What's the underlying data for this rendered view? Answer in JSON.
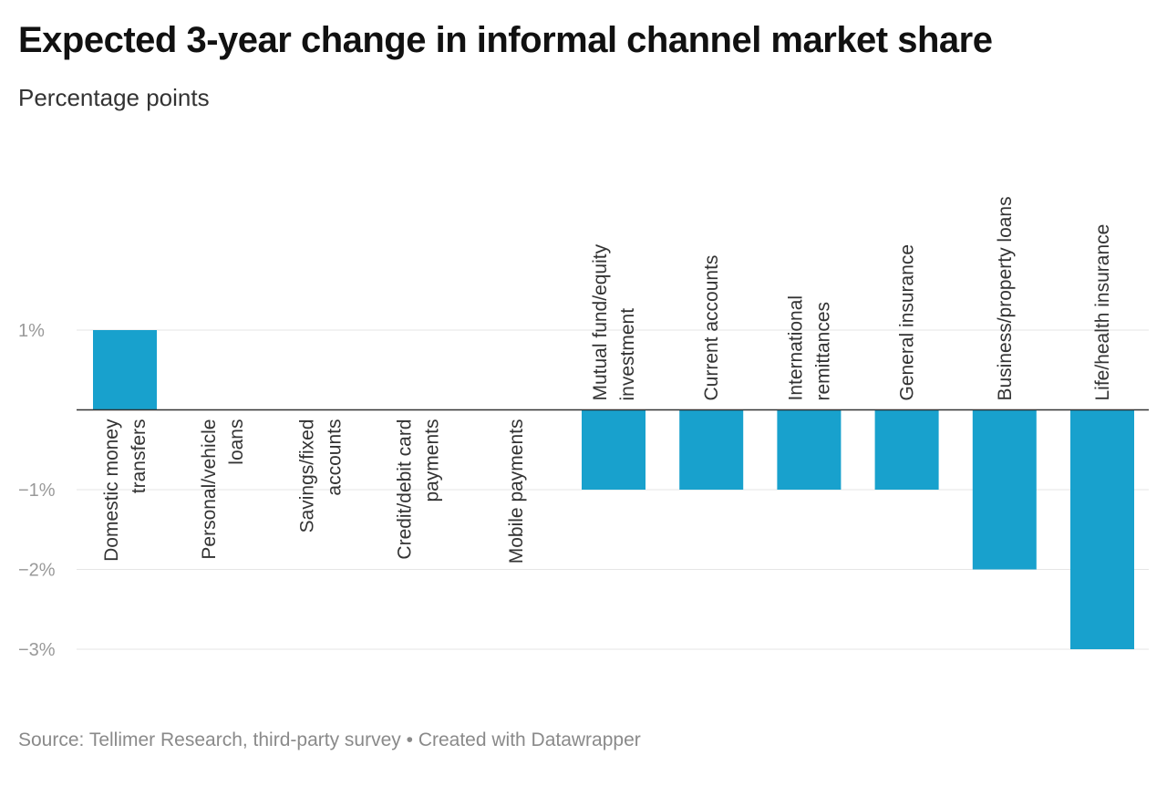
{
  "title": "Expected 3-year change in informal channel market share",
  "subtitle": "Percentage points",
  "footer": {
    "source": "Source: Tellimer Research, third-party survey",
    "separator": "•",
    "created": "Created with Datawrapper"
  },
  "colors": {
    "bar": "#18a1cd",
    "grid": "#e6e6e6",
    "baseline": "#333333",
    "tick_text": "#999999"
  },
  "chart_data": {
    "type": "bar",
    "title": "Expected 3-year change in informal channel market share",
    "ylabel": "Percentage points",
    "xlabel": "",
    "ylim": [
      -3,
      1
    ],
    "y_ticks": [
      1,
      -1,
      -2,
      -3
    ],
    "y_tick_labels": [
      "1%",
      "−1%",
      "−2%",
      "−3%"
    ],
    "grid": true,
    "categories": [
      "Domestic money transfers",
      "Personal/vehicle loans",
      "Savings/fixed accounts",
      "Credit/debit card payments",
      "Mobile payments",
      "Mutual fund/equity investment",
      "Current accounts",
      "International remittances",
      "General insurance",
      "Business/property loans",
      "Life/health insurance"
    ],
    "category_label_lines": [
      [
        "Domestic money",
        "transfers"
      ],
      [
        "Personal/vehicle",
        "loans"
      ],
      [
        "Savings/fixed",
        "accounts"
      ],
      [
        "Credit/debit card",
        "payments"
      ],
      [
        "Mobile payments"
      ],
      [
        "Mutual fund/equity",
        "investment"
      ],
      [
        "Current accounts"
      ],
      [
        "International",
        "remittances"
      ],
      [
        "General insurance"
      ],
      [
        "Business/property loans"
      ],
      [
        "Life/health insurance"
      ]
    ],
    "values": [
      1,
      0,
      0,
      0,
      0,
      -1,
      -1,
      -1,
      -1,
      -2,
      -3
    ]
  }
}
